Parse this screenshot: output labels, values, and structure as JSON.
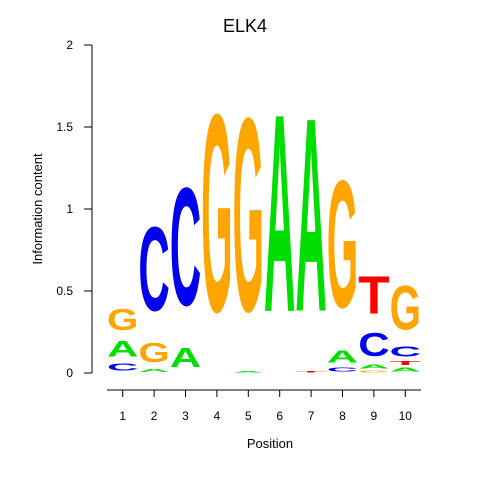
{
  "chart_data": {
    "type": "sequence-logo",
    "title": "ELK4",
    "xlabel": "Position",
    "ylabel": "Information content",
    "ylim": [
      0,
      2
    ],
    "yticks": [
      "0",
      "0.5",
      "1",
      "1.5",
      "2"
    ],
    "positions": [
      "1",
      "2",
      "3",
      "4",
      "5",
      "6",
      "7",
      "8",
      "9",
      "10"
    ],
    "colors": {
      "A": "#00dd00",
      "C": "#0000ee",
      "G": "#ffa500",
      "T": "#ff0000"
    },
    "stacks": [
      [
        {
          "letter": "C",
          "height": 0.07
        },
        {
          "letter": "A",
          "height": 0.15
        },
        {
          "letter": "G",
          "height": 0.21
        }
      ],
      [
        {
          "letter": "A",
          "height": 0.03
        },
        {
          "letter": "G",
          "height": 0.19
        },
        {
          "letter": "C",
          "height": 0.82
        }
      ],
      [
        {
          "letter": "A",
          "height": 0.19
        },
        {
          "letter": "C",
          "height": 1.15
        }
      ],
      [
        {
          "letter": "G",
          "height": 1.93
        }
      ],
      [
        {
          "letter": "A",
          "height": 0.01
        },
        {
          "letter": "G",
          "height": 1.89
        }
      ],
      [
        {
          "letter": "A",
          "height": 1.93
        }
      ],
      [
        {
          "letter": "T",
          "height": 0.01
        },
        {
          "letter": "A",
          "height": 1.89
        }
      ],
      [
        {
          "letter": "C",
          "height": 0.04
        },
        {
          "letter": "A",
          "height": 0.12
        },
        {
          "letter": "G",
          "height": 1.24
        }
      ],
      [
        {
          "letter": "G",
          "height": 0.02
        },
        {
          "letter": "A",
          "height": 0.04
        },
        {
          "letter": "C",
          "height": 0.23
        },
        {
          "letter": "T",
          "height": 0.37
        }
      ],
      [
        {
          "letter": "A",
          "height": 0.04
        },
        {
          "letter": "T",
          "height": 0.04
        },
        {
          "letter": "C",
          "height": 0.1
        },
        {
          "letter": "G",
          "height": 0.43
        }
      ]
    ]
  }
}
